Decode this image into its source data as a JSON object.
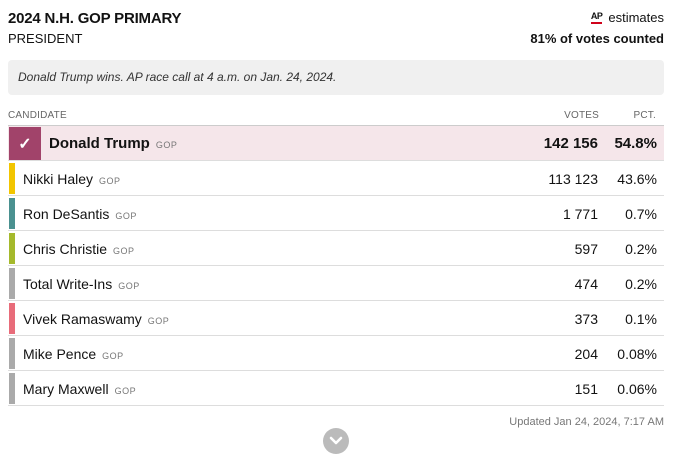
{
  "header": {
    "title": "2024 N.H. GOP PRIMARY",
    "subtitle": "PRESIDENT",
    "ap_label": "AP",
    "estimates_label": "estimates",
    "counted": "81% of votes counted"
  },
  "notice": "Donald Trump wins. AP race call at 4 a.m. on Jan. 24, 2024.",
  "columns": {
    "candidate": "CANDIDATE",
    "votes": "VOTES",
    "pct": "PCT."
  },
  "candidates": [
    {
      "name": "Donald Trump",
      "party": "GOP",
      "votes": "142 156",
      "pct": "54.8%",
      "color": "#a1436a",
      "winner": true
    },
    {
      "name": "Nikki Haley",
      "party": "GOP",
      "votes": "113 123",
      "pct": "43.6%",
      "color": "#f2c500"
    },
    {
      "name": "Ron DeSantis",
      "party": "GOP",
      "votes": "1 771",
      "pct": "0.7%",
      "color": "#4a9190"
    },
    {
      "name": "Chris Christie",
      "party": "GOP",
      "votes": "597",
      "pct": "0.2%",
      "color": "#a5b92c"
    },
    {
      "name": "Total Write-Ins",
      "party": "GOP",
      "votes": "474",
      "pct": "0.2%",
      "color": "#aaaaaa"
    },
    {
      "name": "Vivek Ramaswamy",
      "party": "GOP",
      "votes": "373",
      "pct": "0.1%",
      "color": "#e86c7a"
    },
    {
      "name": "Mike Pence",
      "party": "GOP",
      "votes": "204",
      "pct": "0.08%",
      "color": "#aaaaaa"
    },
    {
      "name": "Mary Maxwell",
      "party": "GOP",
      "votes": "151",
      "pct": "0.06%",
      "color": "#aaaaaa"
    }
  ],
  "updated": "Updated Jan 24, 2024, 7:17 AM",
  "icons": {
    "winner_check": "check-icon",
    "expand": "chevron-down-icon"
  }
}
